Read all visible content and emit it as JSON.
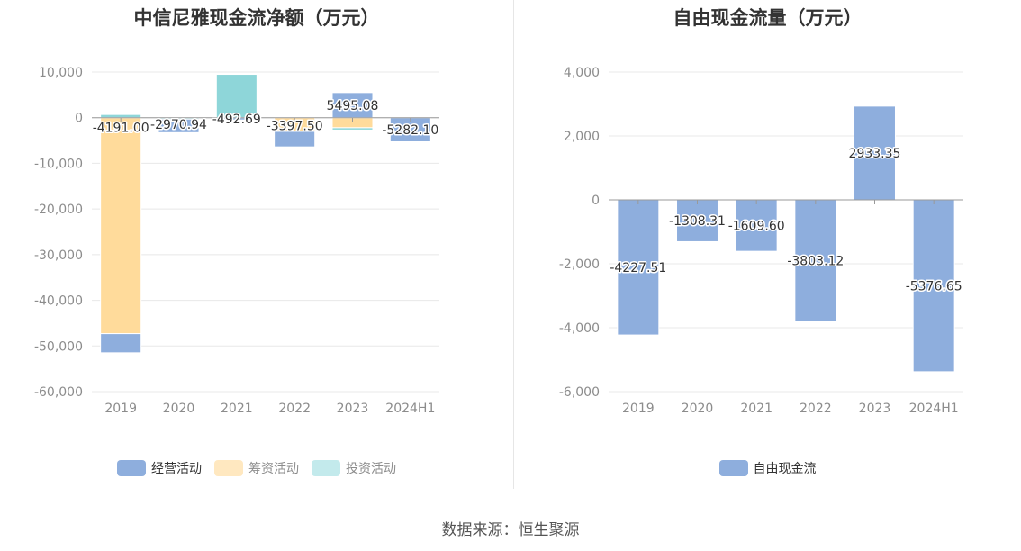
{
  "left": {
    "title": "中信尼雅现金流净额（万元）",
    "legend": [
      {
        "label": "经营活动",
        "color": "#8eaedd"
      },
      {
        "label": "筹资活动",
        "color": "#ffdb9b"
      },
      {
        "label": "投资活动",
        "color": "#8ed6d9"
      }
    ]
  },
  "right": {
    "title": "自由现金流量（万元）",
    "legend": [
      {
        "label": "自由现金流",
        "color": "#8eaedd"
      }
    ]
  },
  "source": "数据来源：恒生聚源",
  "chart_data": [
    {
      "type": "bar",
      "stacked": true,
      "title": "中信尼雅现金流净额（万元）",
      "categories": [
        "2019",
        "2020",
        "2021",
        "2022",
        "2023",
        "2024H1"
      ],
      "ylim": [
        -60000,
        10000
      ],
      "yticks": [
        10000,
        0,
        -10000,
        -20000,
        -30000,
        -40000,
        -50000,
        -60000
      ],
      "ytick_labels": [
        "10,000",
        "0",
        "-10,000",
        "-20,000",
        "-30,000",
        "-40,000",
        "-50,000",
        "-60,000"
      ],
      "grid": true,
      "legend_position": "bottom",
      "series": [
        {
          "name": "经营活动",
          "color": "#8eaedd",
          "values": [
            -4191.0,
            -2970.94,
            -492.69,
            -3397.5,
            5495.08,
            -5282.1
          ]
        },
        {
          "name": "筹资活动",
          "color": "#ffdb9b",
          "values": [
            -47300,
            0,
            0,
            -3000,
            -2200,
            0
          ]
        },
        {
          "name": "投资活动",
          "color": "#8ed6d9",
          "values": [
            700,
            -300,
            9500,
            0,
            -500,
            0
          ]
        }
      ],
      "data_labels": [
        "-4191.00",
        "-2970.94",
        "-492.69",
        "-3397.50",
        "5495.08",
        "-5282.10"
      ]
    },
    {
      "type": "bar",
      "title": "自由现金流量（万元）",
      "categories": [
        "2019",
        "2020",
        "2021",
        "2022",
        "2023",
        "2024H1"
      ],
      "ylim": [
        -6000,
        4000
      ],
      "yticks": [
        4000,
        2000,
        0,
        -2000,
        -4000,
        -6000
      ],
      "ytick_labels": [
        "4,000",
        "2,000",
        "0",
        "-2,000",
        "-4,000",
        "-6,000"
      ],
      "grid": true,
      "legend_position": "bottom",
      "series": [
        {
          "name": "自由现金流",
          "color": "#8eaedd",
          "values": [
            -4227.51,
            -1308.31,
            -1609.6,
            -3803.12,
            2933.35,
            -5376.65
          ]
        }
      ],
      "data_labels": [
        "-4227.51",
        "-1308.31",
        "-1609.60",
        "-3803.12",
        "2933.35",
        "-5376.65"
      ]
    }
  ]
}
